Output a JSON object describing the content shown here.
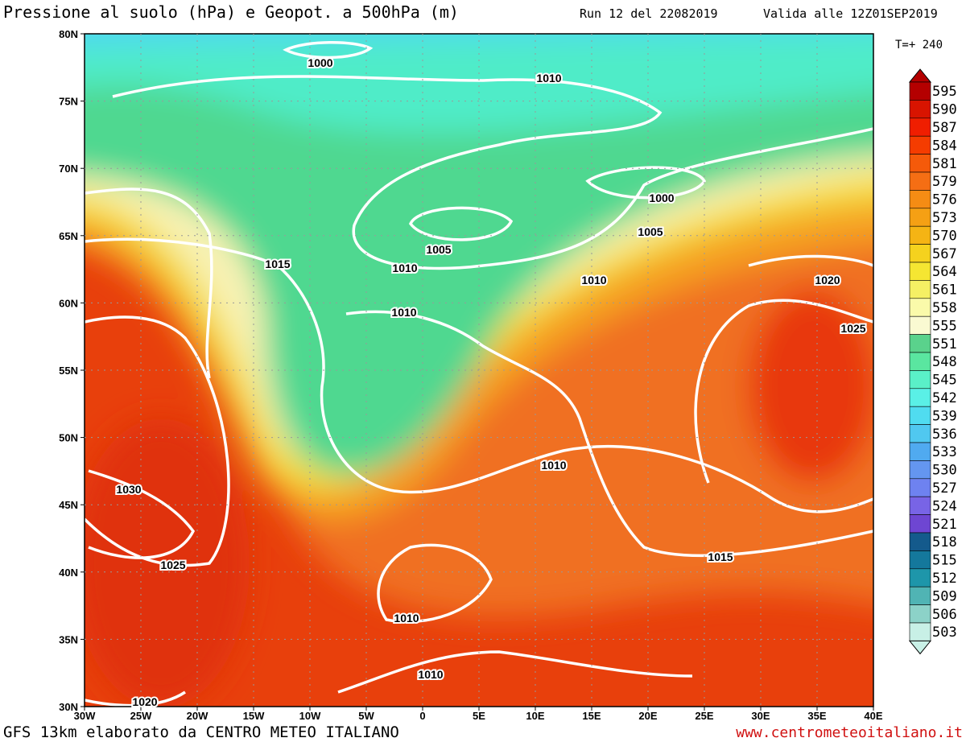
{
  "header": {
    "title": "Pressione al suolo (hPa) e Geopot. a 500hPa (m)",
    "run": "Run 12 del 22082019",
    "valid": "Valida alle 12Z01SEP2019"
  },
  "forecast_step": "T=+ 240",
  "map": {
    "lat_labels": [
      "80N",
      "75N",
      "70N",
      "65N",
      "60N",
      "55N",
      "50N",
      "45N",
      "40N",
      "35N",
      "30N"
    ],
    "lon_labels": [
      "30W",
      "25W",
      "20W",
      "15W",
      "10W",
      "5W",
      "0",
      "5E",
      "10E",
      "15E",
      "20E",
      "25E",
      "30E",
      "35E",
      "40E"
    ],
    "isobar_labels": [
      1000,
      1010,
      1000,
      1005,
      1005,
      1015,
      1010,
      1010,
      1020,
      1010,
      1025,
      1010,
      1030,
      1015,
      1025,
      1010,
      1010,
      1020
    ]
  },
  "colorbar": {
    "levels": [
      595,
      590,
      587,
      584,
      581,
      579,
      576,
      573,
      570,
      567,
      564,
      561,
      558,
      555,
      551,
      548,
      545,
      542,
      539,
      536,
      533,
      530,
      527,
      524,
      521,
      518,
      515,
      512,
      509,
      506,
      503
    ],
    "colors": [
      "#b40000",
      "#d81400",
      "#f01e00",
      "#f53c00",
      "#f55a0a",
      "#f56e14",
      "#f58c14",
      "#f5a014",
      "#f5b414",
      "#f5d21e",
      "#f5e632",
      "#f5f064",
      "#fafaaa",
      "#fafad2",
      "#5ad28c",
      "#5ae6a0",
      "#5af0c8",
      "#5af0e6",
      "#50dcf0",
      "#50c8f0",
      "#50aaf0",
      "#6496f0",
      "#6e82f0",
      "#7864e6",
      "#6e46d2",
      "#145a8c",
      "#14789c",
      "#1e96aa",
      "#50b4b4",
      "#8cd2c8",
      "#c8f0e6"
    ]
  },
  "footer": {
    "left": "GFS 13km elaborato da CENTRO METEO ITALIANO",
    "right": "www.centrometeoitaliano.it"
  }
}
